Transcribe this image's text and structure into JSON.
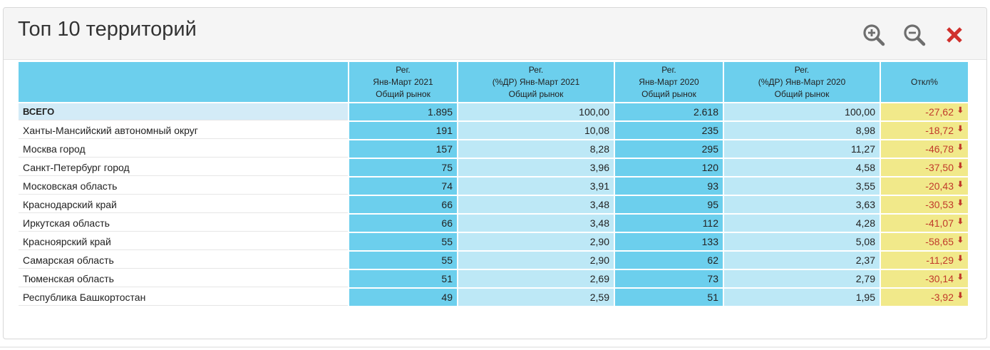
{
  "panel": {
    "title": "Топ 10 территорий",
    "icons": {
      "zoom_in": "zoom-in-icon",
      "zoom_out": "zoom-out-icon",
      "close": "close-icon"
    },
    "colors": {
      "header_cell": "#6ccfed",
      "light_cell": "#bde8f6",
      "deviation_cell": "#f1e98a",
      "negative": "#c0392b",
      "close": "#d0312d"
    }
  },
  "table": {
    "headers": [
      "",
      [
        "Рег.",
        "Янв-Март 2021",
        "Общий рынок"
      ],
      [
        "Рег.",
        "(%ДР) Янв-Март 2021",
        "Общий рынок"
      ],
      [
        "Рег.",
        "Янв-Март 2020",
        "Общий рынок"
      ],
      [
        "Рег.",
        "(%ДР) Янв-Март 2020",
        "Общий рынок"
      ],
      [
        "Откл%"
      ]
    ],
    "rows": [
      {
        "name": "ВСЕГО",
        "v2021": "1.895",
        "p2021": "100,00",
        "v2020": "2.618",
        "p2020": "100,00",
        "dev": "-27,62"
      },
      {
        "name": "Ханты-Мансийский автономный округ",
        "v2021": "191",
        "p2021": "10,08",
        "v2020": "235",
        "p2020": "8,98",
        "dev": "-18,72"
      },
      {
        "name": "Москва город",
        "v2021": "157",
        "p2021": "8,28",
        "v2020": "295",
        "p2020": "11,27",
        "dev": "-46,78"
      },
      {
        "name": "Санкт-Петербург город",
        "v2021": "75",
        "p2021": "3,96",
        "v2020": "120",
        "p2020": "4,58",
        "dev": "-37,50"
      },
      {
        "name": "Московская область",
        "v2021": "74",
        "p2021": "3,91",
        "v2020": "93",
        "p2020": "3,55",
        "dev": "-20,43"
      },
      {
        "name": "Краснодарский край",
        "v2021": "66",
        "p2021": "3,48",
        "v2020": "95",
        "p2020": "3,63",
        "dev": "-30,53"
      },
      {
        "name": "Иркутская область",
        "v2021": "66",
        "p2021": "3,48",
        "v2020": "112",
        "p2020": "4,28",
        "dev": "-41,07"
      },
      {
        "name": "Красноярский край",
        "v2021": "55",
        "p2021": "2,90",
        "v2020": "133",
        "p2020": "5,08",
        "dev": "-58,65"
      },
      {
        "name": "Самарская область",
        "v2021": "55",
        "p2021": "2,90",
        "v2020": "62",
        "p2020": "2,37",
        "dev": "-11,29"
      },
      {
        "name": "Тюменская область",
        "v2021": "51",
        "p2021": "2,69",
        "v2020": "73",
        "p2020": "2,79",
        "dev": "-30,14"
      },
      {
        "name": "Республика Башкортостан",
        "v2021": "49",
        "p2021": "2,59",
        "v2020": "51",
        "p2020": "1,95",
        "dev": "-3,92"
      }
    ]
  }
}
